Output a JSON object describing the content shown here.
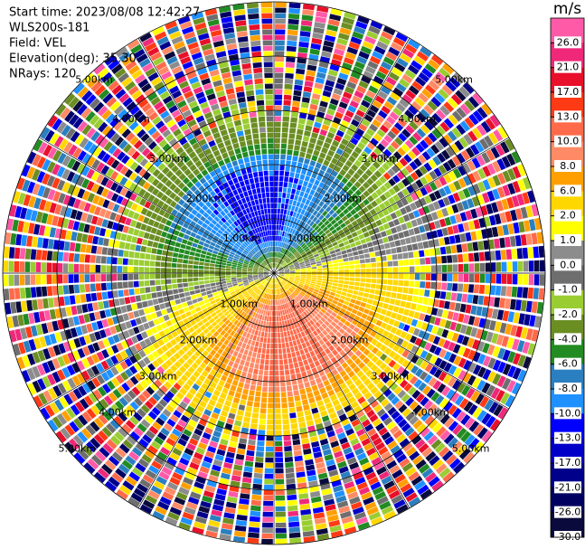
{
  "chart_data": {
    "type": "ppi",
    "header": [
      "Start time: 2023/08/08 12:42:27",
      "WLS200s-181",
      "Field: VEL",
      "Elevation(deg): 35.30",
      "NRays: 120"
    ],
    "colorbar_label": "m/s",
    "colorbar_ticks": [
      {
        "value": 26,
        "label": "26.0"
      },
      {
        "value": 21,
        "label": "21.0"
      },
      {
        "value": 17,
        "label": "17.0"
      },
      {
        "value": 13,
        "label": "13.0"
      },
      {
        "value": 10,
        "label": "10.0"
      },
      {
        "value": 8,
        "label": "8.0"
      },
      {
        "value": 6,
        "label": "6.0"
      },
      {
        "value": 2,
        "label": "2.0"
      },
      {
        "value": 1,
        "label": "1.0"
      },
      {
        "value": 0,
        "label": "0.0"
      },
      {
        "value": -1,
        "label": "-1.0"
      },
      {
        "value": -2,
        "label": "-2.0"
      },
      {
        "value": -4,
        "label": "-4.0"
      },
      {
        "value": -6,
        "label": "-6.0"
      },
      {
        "value": -8,
        "label": "-8.0"
      },
      {
        "value": -10,
        "label": "-10.0"
      },
      {
        "value": -13,
        "label": "-13.0"
      },
      {
        "value": -17,
        "label": "-17.0"
      },
      {
        "value": -21,
        "label": "-21.0"
      },
      {
        "value": -26,
        "label": "-26.0"
      },
      {
        "value": -30,
        "label": "-30.0"
      }
    ],
    "colors": [
      "#ff5aa8",
      "#f0287a",
      "#e8102a",
      "#ff3a14",
      "#ff6a4a",
      "#ff8a66",
      "#ffa000",
      "#ffd700",
      "#ffff00",
      "#8c8c8c",
      "#6e6e6e",
      "#9acd32",
      "#6b8e23",
      "#228b22",
      "#2a7fc0",
      "#1e90ff",
      "#0000ff",
      "#0000c8",
      "#00008b",
      "#000060",
      "#0a0a3c"
    ],
    "range_rings": [
      {
        "value": 1,
        "label": "1.00km"
      },
      {
        "value": 2,
        "label": "2.00km"
      },
      {
        "value": 3,
        "label": "3.00km"
      },
      {
        "value": 4,
        "label": "4.00km"
      },
      {
        "value": 5,
        "label": "5.00km"
      }
    ],
    "rlim": [
      0,
      5
    ]
  }
}
